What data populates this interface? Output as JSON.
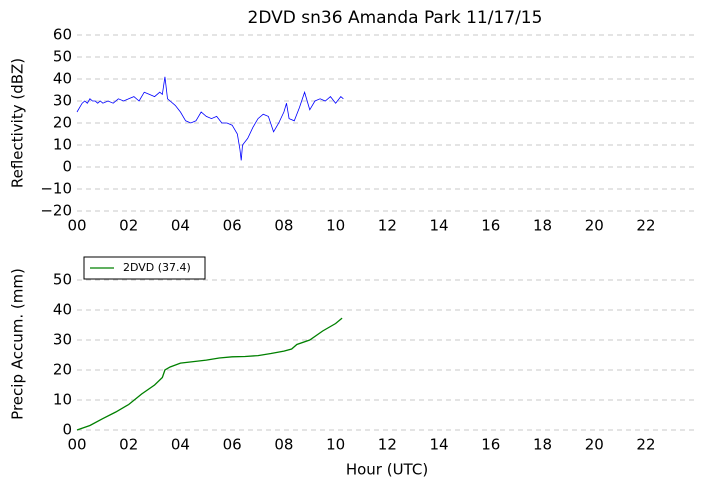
{
  "chart_data": [
    {
      "type": "line",
      "title": "2DVD sn36 Amanda Park 11/17/15",
      "ylabel": "Reflectivity (dBZ)",
      "x": [
        0,
        0.1,
        0.2,
        0.3,
        0.4,
        0.5,
        0.6,
        0.7,
        0.8,
        0.9,
        1.0,
        1.2,
        1.4,
        1.6,
        1.8,
        2.0,
        2.2,
        2.4,
        2.6,
        2.8,
        3.0,
        3.2,
        3.3,
        3.4,
        3.5,
        3.6,
        3.8,
        4.0,
        4.2,
        4.4,
        4.6,
        4.8,
        5.0,
        5.2,
        5.4,
        5.6,
        5.8,
        6.0,
        6.2,
        6.3,
        6.35,
        6.4,
        6.6,
        6.8,
        7.0,
        7.2,
        7.4,
        7.6,
        7.8,
        8.0,
        8.1,
        8.2,
        8.4,
        8.6,
        8.8,
        9.0,
        9.2,
        9.4,
        9.6,
        9.8,
        10.0,
        10.2,
        10.3
      ],
      "series": [
        {
          "color": "#0000ff",
          "values": [
            25,
            27,
            29,
            30,
            29,
            31,
            30,
            30,
            29,
            30,
            29,
            30,
            29,
            31,
            30,
            31,
            32,
            30,
            34,
            33,
            32,
            34,
            33,
            41,
            31,
            30,
            28,
            25,
            21,
            20,
            21,
            25,
            23,
            22,
            23,
            20,
            20,
            19,
            15,
            8,
            3,
            10,
            13,
            18,
            22,
            24,
            23,
            16,
            20,
            25,
            29,
            22,
            21,
            27,
            34,
            26,
            30,
            31,
            30,
            32,
            29,
            32,
            31
          ]
        }
      ],
      "xlim": [
        0,
        24
      ],
      "xticks": [
        {
          "value": 0,
          "label": "00"
        },
        {
          "value": 2,
          "label": "02"
        },
        {
          "value": 4,
          "label": "04"
        },
        {
          "value": 6,
          "label": "06"
        },
        {
          "value": 8,
          "label": "08"
        },
        10,
        12,
        14,
        16,
        18,
        20,
        22
      ],
      "ylim": [
        -20,
        60
      ],
      "yticks": [
        {
          "value": -20,
          "label": "−20"
        },
        {
          "value": -10,
          "label": "−10"
        },
        0,
        10,
        20,
        30,
        40,
        50,
        60
      ],
      "grid": true
    },
    {
      "type": "line",
      "ylabel": "Precip Accum. (mm)",
      "xlabel": "Hour (UTC)",
      "x": [
        0,
        0.5,
        1,
        1.5,
        2,
        2.5,
        3,
        3.3,
        3.4,
        3.6,
        4,
        4.5,
        5,
        5.5,
        6,
        6.5,
        7,
        7.5,
        8,
        8.3,
        8.5,
        9,
        9.5,
        10,
        10.25
      ],
      "series": [
        {
          "name": "2DVD (37.4)",
          "color": "#008000",
          "values": [
            0,
            1.5,
            3.8,
            6,
            8.5,
            12,
            15,
            17.5,
            20,
            21,
            22.3,
            22.8,
            23.3,
            24,
            24.4,
            24.5,
            24.8,
            25.5,
            26.3,
            27,
            28.5,
            30,
            33,
            35.5,
            37.3
          ]
        }
      ],
      "xlim": [
        0,
        24
      ],
      "xticks": [
        {
          "value": 0,
          "label": "00"
        },
        {
          "value": 2,
          "label": "02"
        },
        {
          "value": 4,
          "label": "04"
        },
        {
          "value": 6,
          "label": "06"
        },
        {
          "value": 8,
          "label": "08"
        },
        10,
        12,
        14,
        16,
        18,
        20,
        22
      ],
      "ylim": [
        0,
        58
      ],
      "yticks": [
        0,
        10,
        20,
        30,
        40,
        50
      ],
      "grid": true,
      "legend": "upper left"
    }
  ]
}
